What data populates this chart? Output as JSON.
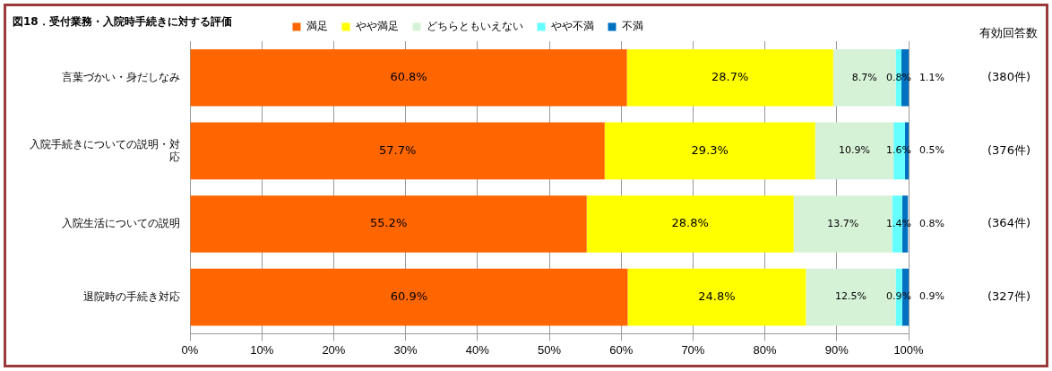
{
  "chart_data": {
    "type": "bar",
    "orientation": "horizontal",
    "stacked": true,
    "title": "図18．受付業務・入院時手続きに対する評価",
    "categories": [
      "言葉づかい・身だしなみ",
      "入院手続きについての説明・対応",
      "入院生活についての説明",
      "退院時の手続き対応"
    ],
    "series": [
      {
        "name": "満足",
        "color": "#ff6600",
        "values": [
          60.8,
          57.7,
          55.2,
          60.9
        ],
        "value_labels": [
          "60.8%",
          "57.7%",
          "55.2%",
          "60.9%"
        ]
      },
      {
        "name": "やや満足",
        "color": "#ffff00",
        "values": [
          28.7,
          29.3,
          28.8,
          24.8
        ],
        "value_labels": [
          "28.7%",
          "29.3%",
          "28.8%",
          "24.8%"
        ]
      },
      {
        "name": "どちらともいえない",
        "color": "#d6f2d6",
        "values": [
          8.7,
          10.9,
          13.7,
          12.5
        ],
        "value_labels": [
          "8.7%",
          "10.9%",
          "13.7%",
          "12.5%"
        ]
      },
      {
        "name": "やや不満",
        "color": "#66ffff",
        "values": [
          0.8,
          1.6,
          1.4,
          0.9
        ],
        "value_labels": [
          "0.8%",
          "1.6%",
          "1.4%",
          "0.9%"
        ]
      },
      {
        "name": "不満",
        "color": "#0070c0",
        "values": [
          1.1,
          0.5,
          0.8,
          0.9
        ],
        "value_labels": [
          "1.1%",
          "0.5%",
          "0.8%",
          "0.9%"
        ]
      }
    ],
    "xlim": [
      0,
      100
    ],
    "xticks": [
      {
        "value": 0,
        "label": "0%"
      },
      {
        "value": 10,
        "label": "10%"
      },
      {
        "value": 20,
        "label": "20%"
      },
      {
        "value": 30,
        "label": "30%"
      },
      {
        "value": 40,
        "label": "40%"
      },
      {
        "value": 50,
        "label": "50%"
      },
      {
        "value": 60,
        "label": "60%"
      },
      {
        "value": 70,
        "label": "70%"
      },
      {
        "value": 80,
        "label": "80%"
      },
      {
        "value": 90,
        "label": "90%"
      },
      {
        "value": 100,
        "label": "100%"
      }
    ],
    "grid": "x",
    "legend": "top",
    "annotations": [
      "有効回答数",
      "(380件)",
      "(376件)",
      "(364件)",
      "(327件)"
    ]
  }
}
